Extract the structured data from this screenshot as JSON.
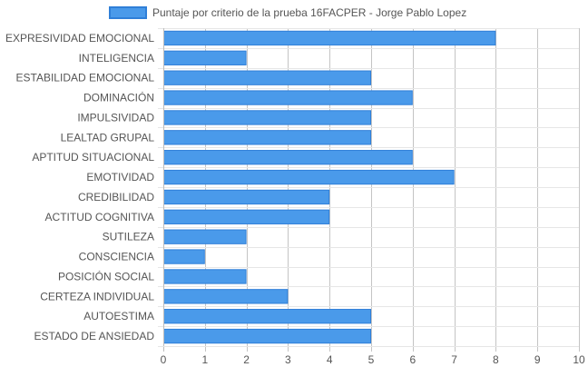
{
  "chart_data": {
    "type": "bar",
    "orientation": "horizontal",
    "legend": {
      "label": "Puntaje por criterio de la prueba 16FACPER - Jorge Pablo Lopez",
      "position": "top"
    },
    "categories": [
      "EXPRESIVIDAD EMOCIONAL",
      "INTELIGENCIA",
      "ESTABILIDAD EMOCIONAL",
      "DOMINACIÓN",
      "IMPULSIVIDAD",
      "LEALTAD GRUPAL",
      "APTITUD SITUACIONAL",
      "EMOTIVIDAD",
      "CREDIBILIDAD",
      "ACTITUD COGNITIVA",
      "SUTILEZA",
      "CONSCIENCIA",
      "POSICIÓN SOCIAL",
      "CERTEZA INDIVIDUAL",
      "AUTOESTIMA",
      "ESTADO DE ANSIEDAD"
    ],
    "series": [
      {
        "name": "Puntaje por criterio de la prueba 16FACPER - Jorge Pablo Lopez",
        "values": [
          8,
          2,
          5,
          6,
          5,
          5,
          6,
          7,
          4,
          4,
          2,
          1,
          2,
          3,
          5,
          5
        ]
      }
    ],
    "xlim": [
      0,
      10
    ],
    "xticks": [
      "0",
      "1",
      "2",
      "3",
      "4",
      "5",
      "6",
      "7",
      "8",
      "9",
      "10"
    ],
    "grid": true,
    "colors": {
      "bar_fill": "#4a9aea",
      "bar_stroke": "#2f7fd8",
      "grid": "#e6e6e6",
      "axis": "#bdbdbd",
      "text": "#555555"
    }
  }
}
